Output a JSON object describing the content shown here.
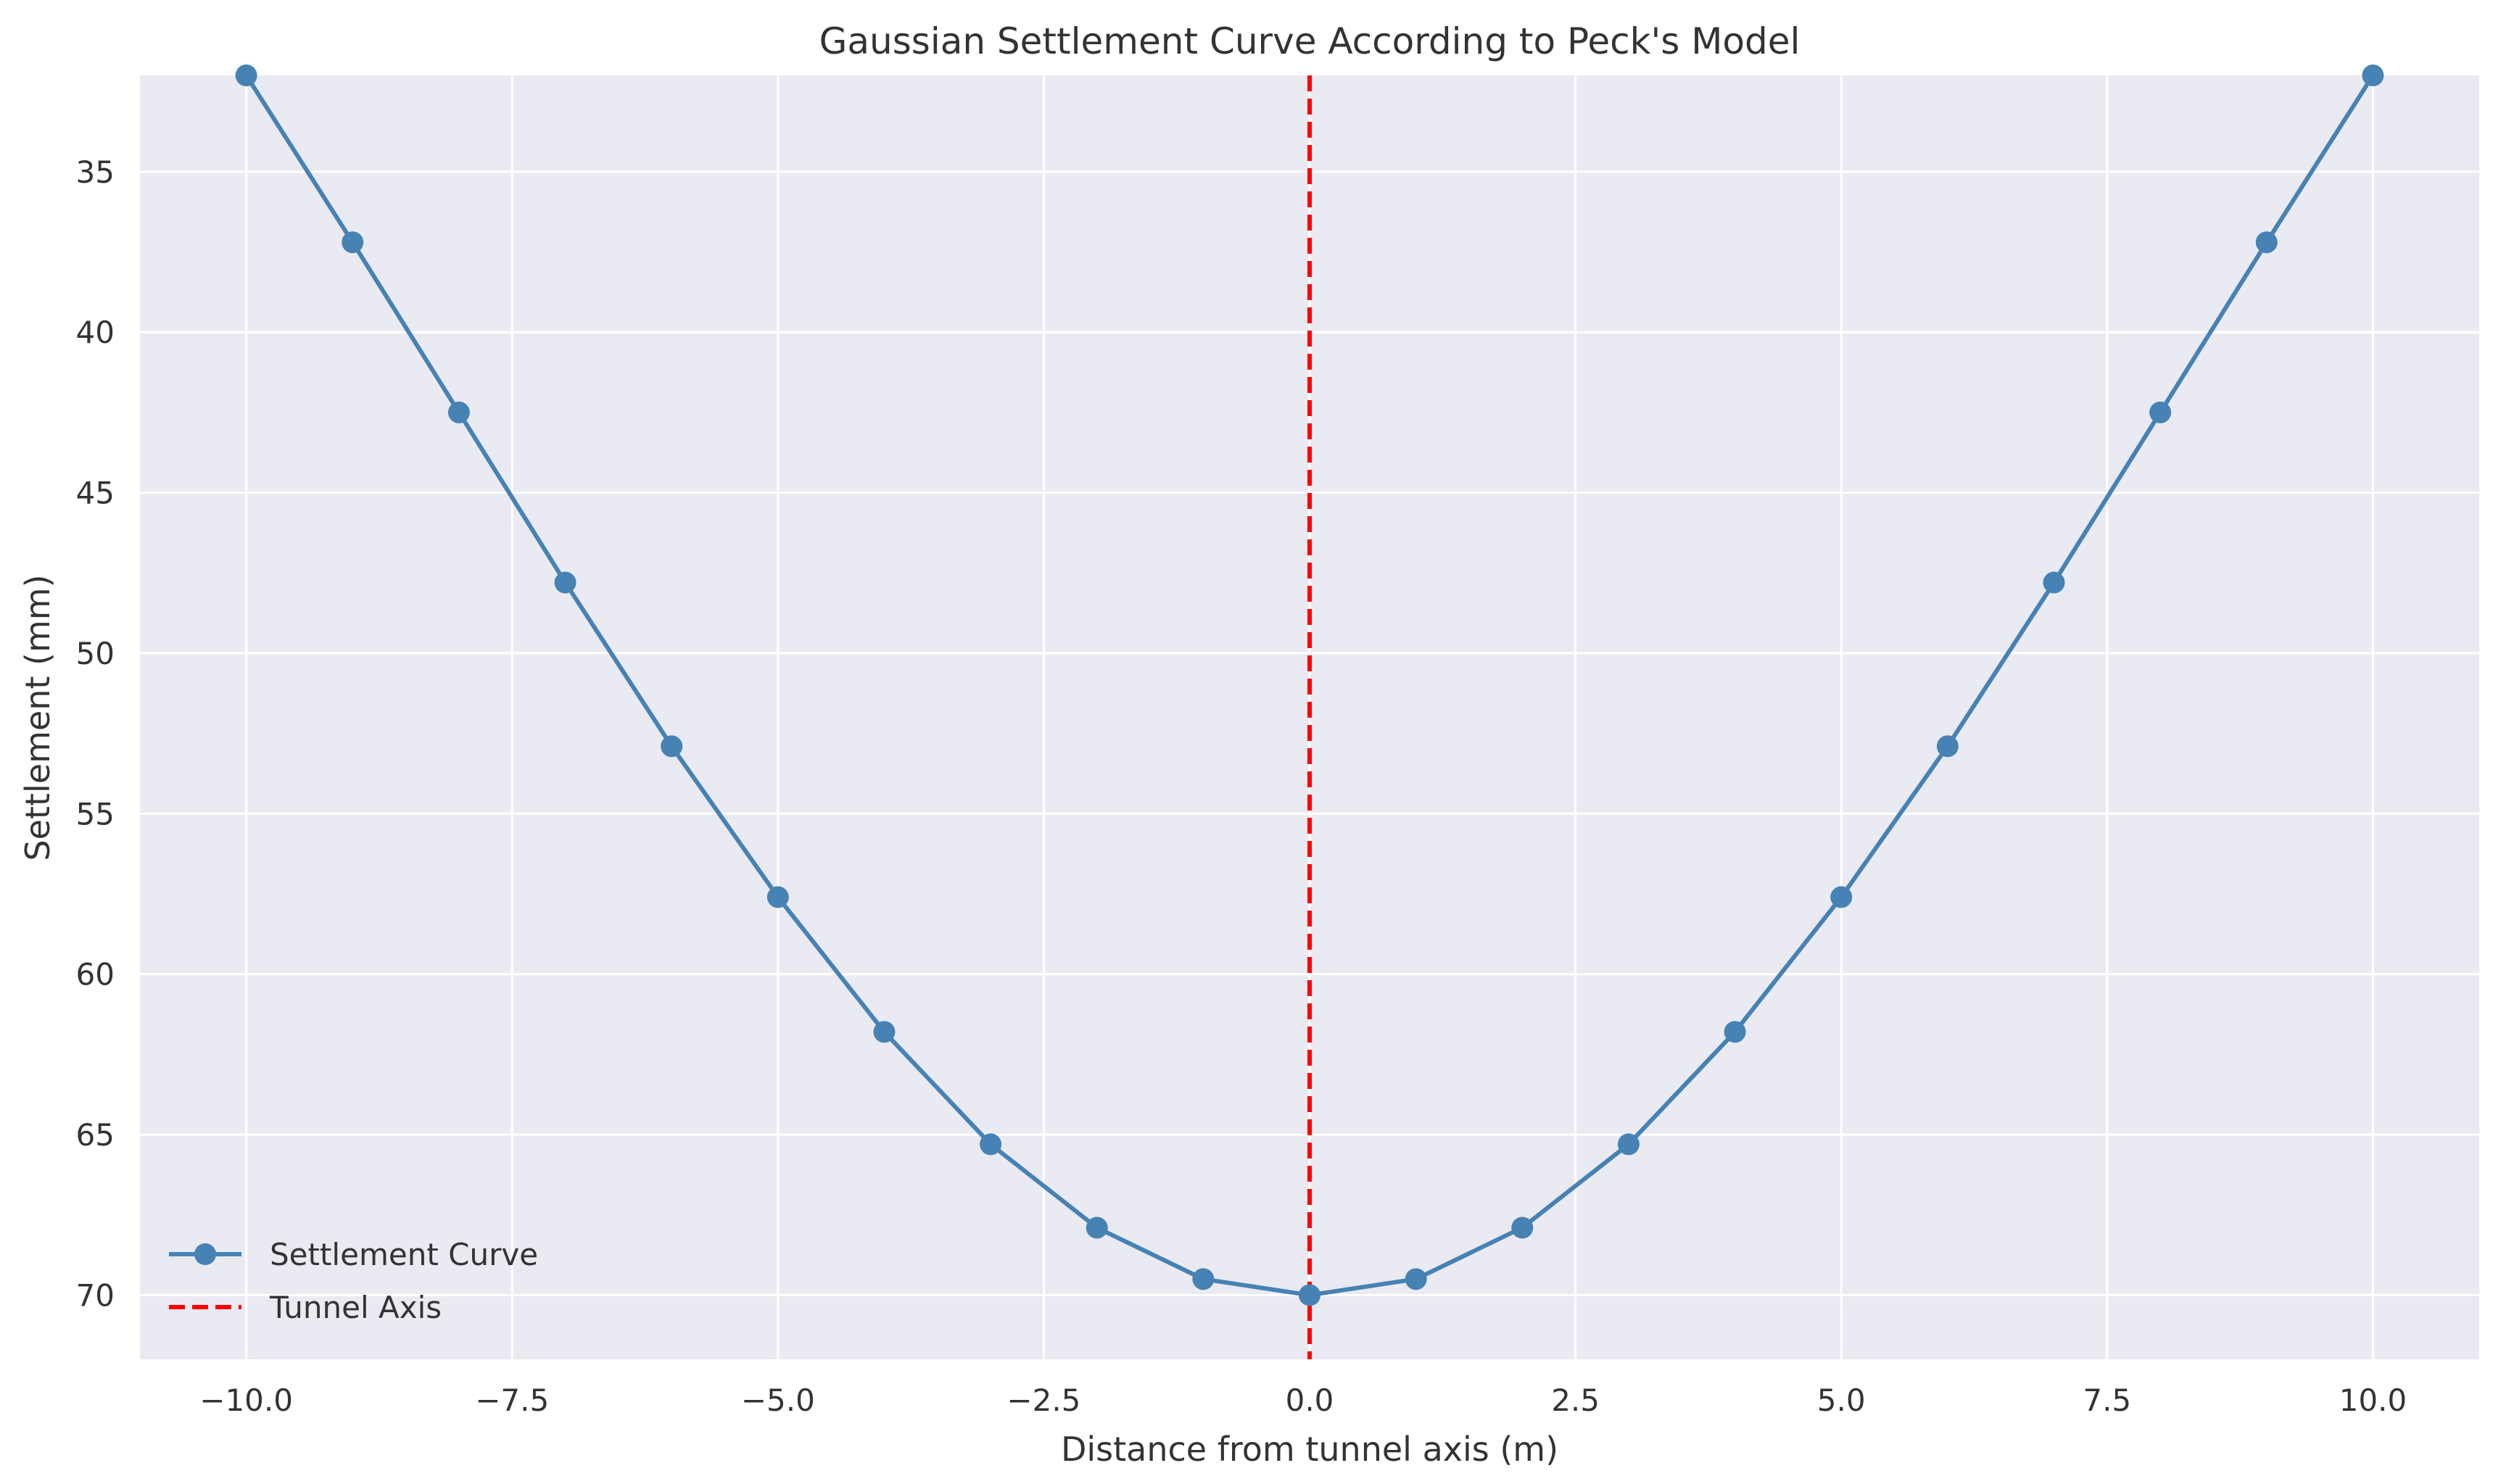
{
  "chart_data": {
    "type": "line",
    "title": "Gaussian Settlement Curve According to Peck's Model",
    "xlabel": "Distance from tunnel axis (m)",
    "ylabel": "Settlement (mm)",
    "xlim": [
      -11,
      11
    ],
    "ylim": [
      72,
      32
    ],
    "y_inverted": true,
    "x_ticks": [
      -10,
      -7.5,
      -5,
      -2.5,
      0,
      2.5,
      5,
      7.5,
      10
    ],
    "x_tick_labels": [
      "−10.0",
      "−7.5",
      "−5.0",
      "−2.5",
      "0.0",
      "2.5",
      "5.0",
      "7.5",
      "10.0"
    ],
    "y_ticks": [
      35,
      40,
      45,
      50,
      55,
      60,
      65,
      70
    ],
    "y_tick_labels": [
      "35",
      "40",
      "45",
      "50",
      "55",
      "60",
      "65",
      "70"
    ],
    "grid": true,
    "legend_position": "lower-left",
    "series": [
      {
        "name": "Settlement Curve",
        "style": "line-with-markers",
        "color": "#4682b4",
        "x": [
          -10,
          -9,
          -8,
          -7,
          -6,
          -5,
          -4,
          -3,
          -2,
          -1,
          0,
          1,
          2,
          3,
          4,
          5,
          6,
          7,
          8,
          9,
          10
        ],
        "y": [
          32.0,
          37.2,
          42.5,
          47.8,
          52.9,
          57.6,
          61.8,
          65.3,
          67.9,
          69.5,
          70.0,
          69.5,
          67.9,
          65.3,
          61.8,
          57.6,
          52.9,
          47.8,
          42.5,
          37.2,
          32.0
        ]
      },
      {
        "name": "Tunnel Axis",
        "style": "dashed-vertical-line",
        "color": "#ff0000",
        "x_value": 0
      }
    ]
  },
  "colors": {
    "plot_background": "#eaeaf2",
    "grid": "#ffffff",
    "settlement_line": "#4682b4",
    "tunnel_axis": "#ff0000"
  }
}
